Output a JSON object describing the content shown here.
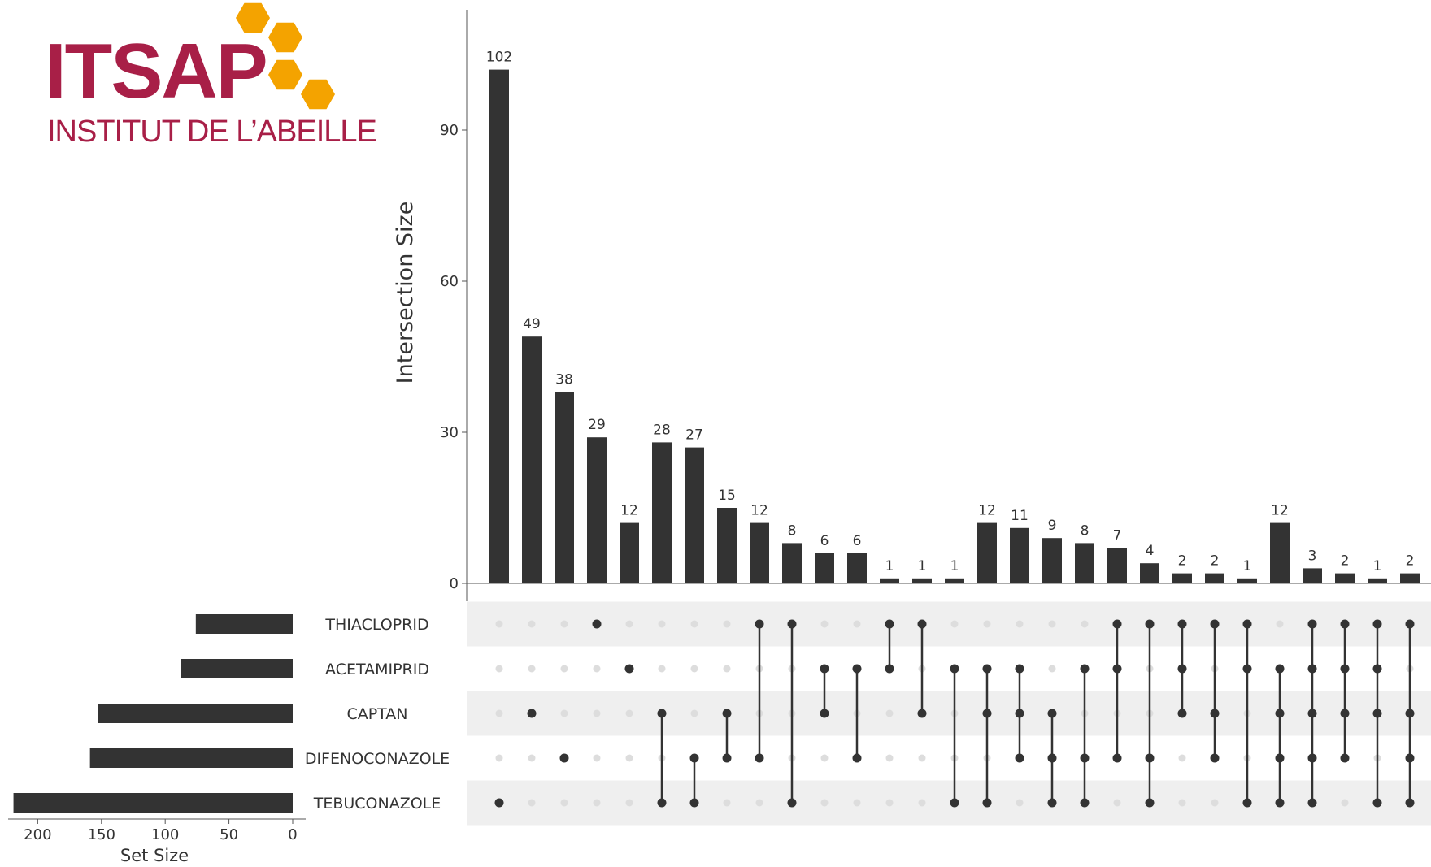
{
  "logo": {
    "name": "ITSAP",
    "subtitle": "INSTITUT DE L’ABEILLE",
    "brand_color": "#a81f47",
    "hex_color": "#f4a300"
  },
  "chart_data": {
    "type": "upset",
    "ylabel": "Intersection Size",
    "ylim": [
      0,
      105
    ],
    "yticks": [
      0,
      30,
      60,
      90
    ],
    "set_size_label": "Set Size",
    "set_size_ticks": [
      200,
      150,
      100,
      50,
      0
    ],
    "set_size_max": 220,
    "bar_color": "#333333",
    "dot_on_color": "#333333",
    "dot_off_color": "#dddddd",
    "sets": [
      {
        "name": "THIACLOPRID",
        "size": 76
      },
      {
        "name": "ACETAMIPRID",
        "size": 88
      },
      {
        "name": "CAPTAN",
        "size": 153
      },
      {
        "name": "DIFENOCONAZOLE",
        "size": 159
      },
      {
        "name": "TEBUCONAZOLE",
        "size": 219
      }
    ],
    "intersections": [
      {
        "value": 102,
        "sets": [
          "TEBUCONAZOLE"
        ]
      },
      {
        "value": 49,
        "sets": [
          "CAPTAN"
        ]
      },
      {
        "value": 38,
        "sets": [
          "DIFENOCONAZOLE"
        ]
      },
      {
        "value": 29,
        "sets": [
          "THIACLOPRID"
        ]
      },
      {
        "value": 12,
        "sets": [
          "ACETAMIPRID"
        ]
      },
      {
        "value": 28,
        "sets": [
          "CAPTAN",
          "TEBUCONAZOLE"
        ]
      },
      {
        "value": 27,
        "sets": [
          "DIFENOCONAZOLE",
          "TEBUCONAZOLE"
        ]
      },
      {
        "value": 15,
        "sets": [
          "CAPTAN",
          "DIFENOCONAZOLE"
        ]
      },
      {
        "value": 12,
        "sets": [
          "THIACLOPRID",
          "DIFENOCONAZOLE"
        ]
      },
      {
        "value": 8,
        "sets": [
          "THIACLOPRID",
          "TEBUCONAZOLE"
        ]
      },
      {
        "value": 6,
        "sets": [
          "ACETAMIPRID",
          "CAPTAN"
        ]
      },
      {
        "value": 6,
        "sets": [
          "ACETAMIPRID",
          "DIFENOCONAZOLE"
        ]
      },
      {
        "value": 1,
        "sets": [
          "THIACLOPRID",
          "ACETAMIPRID"
        ]
      },
      {
        "value": 1,
        "sets": [
          "THIACLOPRID",
          "CAPTAN"
        ]
      },
      {
        "value": 1,
        "sets": [
          "ACETAMIPRID",
          "TEBUCONAZOLE"
        ]
      },
      {
        "value": 12,
        "sets": [
          "ACETAMIPRID",
          "CAPTAN",
          "TEBUCONAZOLE"
        ]
      },
      {
        "value": 11,
        "sets": [
          "ACETAMIPRID",
          "CAPTAN",
          "DIFENOCONAZOLE"
        ]
      },
      {
        "value": 9,
        "sets": [
          "CAPTAN",
          "DIFENOCONAZOLE",
          "TEBUCONAZOLE"
        ]
      },
      {
        "value": 8,
        "sets": [
          "ACETAMIPRID",
          "DIFENOCONAZOLE",
          "TEBUCONAZOLE"
        ]
      },
      {
        "value": 7,
        "sets": [
          "THIACLOPRID",
          "ACETAMIPRID",
          "DIFENOCONAZOLE"
        ]
      },
      {
        "value": 4,
        "sets": [
          "THIACLOPRID",
          "DIFENOCONAZOLE",
          "TEBUCONAZOLE"
        ]
      },
      {
        "value": 2,
        "sets": [
          "THIACLOPRID",
          "ACETAMIPRID",
          "CAPTAN"
        ]
      },
      {
        "value": 2,
        "sets": [
          "THIACLOPRID",
          "CAPTAN",
          "DIFENOCONAZOLE"
        ]
      },
      {
        "value": 1,
        "sets": [
          "THIACLOPRID",
          "ACETAMIPRID",
          "TEBUCONAZOLE"
        ]
      },
      {
        "value": 12,
        "sets": [
          "ACETAMIPRID",
          "CAPTAN",
          "DIFENOCONAZOLE",
          "TEBUCONAZOLE"
        ]
      },
      {
        "value": 3,
        "sets": [
          "THIACLOPRID",
          "ACETAMIPRID",
          "CAPTAN",
          "DIFENOCONAZOLE",
          "TEBUCONAZOLE"
        ]
      },
      {
        "value": 2,
        "sets": [
          "THIACLOPRID",
          "ACETAMIPRID",
          "CAPTAN",
          "DIFENOCONAZOLE"
        ]
      },
      {
        "value": 1,
        "sets": [
          "THIACLOPRID",
          "ACETAMIPRID",
          "CAPTAN",
          "TEBUCONAZOLE"
        ]
      },
      {
        "value": 2,
        "sets": [
          "THIACLOPRID",
          "CAPTAN",
          "DIFENOCONAZOLE",
          "TEBUCONAZOLE"
        ]
      }
    ]
  }
}
